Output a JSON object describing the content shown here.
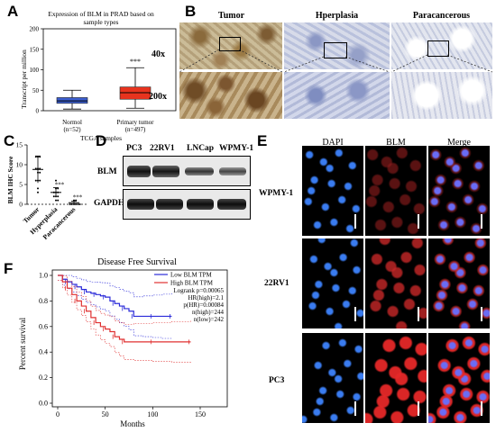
{
  "panels": {
    "A": {
      "letter": "A",
      "title_line1": "Expression of BLM in PRAD based on",
      "title_line2": "sample types",
      "ylabel": "Transcript per million",
      "yticks": [
        "0",
        "50",
        "100",
        "150",
        "200"
      ],
      "xlabel": "TCGA samples",
      "groups": [
        {
          "name": "Normol",
          "n": "(n=52)"
        },
        {
          "name": "Primary tumor",
          "n": "(n=497)"
        }
      ],
      "sig": "***"
    },
    "B": {
      "letter": "B",
      "columns": [
        "Tumor",
        "Hperplasia",
        "Paracancerous"
      ],
      "rows": [
        "40x",
        "200x"
      ]
    },
    "C": {
      "letter": "C",
      "ylabel": "BLM IHC Score",
      "yticks": [
        "0",
        "5",
        "10",
        "15"
      ],
      "categories": [
        "Tumor",
        "Hyperplasia",
        "Paracancerous"
      ],
      "sig": [
        "***",
        "***"
      ]
    },
    "D": {
      "letter": "D",
      "lanes": [
        "PC3",
        "22RV1",
        "LNCap",
        "WPMY-1"
      ],
      "rows": [
        "BLM",
        "GAPDH"
      ]
    },
    "E": {
      "letter": "E",
      "columns": [
        "DAPI",
        "BLM",
        "Merge"
      ],
      "rows": [
        "WPMY-1",
        "22RV1",
        "PC3"
      ]
    },
    "F": {
      "letter": "F",
      "title": "Disease Free Survival",
      "ylabel": "Percent survival",
      "xlabel": "Months",
      "xticks": [
        "0",
        "50",
        "100",
        "150"
      ],
      "yticks": [
        "0.0",
        "0.2",
        "0.4",
        "0.6",
        "0.8",
        "1.0"
      ],
      "legend": [
        {
          "label": "Low BLM TPM",
          "color": "#2b2bd9"
        },
        {
          "label": "High BLM TPM",
          "color": "#e03030"
        }
      ],
      "stats": [
        "Logrank p=0.00065",
        "HR(high)=2.1",
        "p(HR)=0.00084",
        "n(high)=244",
        "n(low)=242"
      ]
    }
  },
  "chart_data": [
    {
      "type": "box",
      "title": "Expression of BLM in PRAD based on sample types",
      "xlabel": "TCGA samples",
      "ylabel": "Transcript per million",
      "ylim": [
        0,
        200
      ],
      "categories": [
        "Normol (n=52)",
        "Primary tumor (n=497)"
      ],
      "boxes": [
        {
          "min": 4,
          "q1": 18,
          "median": 24,
          "q3": 32,
          "max": 50,
          "color": "#3d5fd0"
        },
        {
          "min": 6,
          "q1": 28,
          "median": 44,
          "q3": 58,
          "max": 105,
          "color": "#e8331e"
        }
      ]
    },
    {
      "type": "scatter",
      "ylabel": "BLM IHC Score",
      "ylim": [
        0,
        15
      ],
      "categories": [
        "Tumor",
        "Hyperplasia",
        "Paracancerous"
      ],
      "means": [
        8.8,
        3.0,
        0.4
      ],
      "error": [
        3.4,
        1.2,
        0.4
      ],
      "points": [
        [
          12,
          12,
          12,
          9,
          9,
          9,
          8,
          8,
          6,
          6,
          6,
          4,
          3
        ],
        [
          6,
          4,
          4,
          3,
          3,
          3,
          2,
          2,
          2,
          1,
          1
        ],
        [
          1,
          1,
          0,
          0,
          0,
          0,
          0,
          0
        ]
      ]
    },
    {
      "type": "line",
      "title": "Disease Free Survival",
      "xlabel": "Months",
      "ylabel": "Percent survival",
      "xlim": [
        0,
        150
      ],
      "ylim": [
        0,
        1
      ],
      "series": [
        {
          "name": "Low BLM TPM",
          "color": "#2b2bd9",
          "x": [
            0,
            5,
            10,
            15,
            20,
            25,
            30,
            35,
            40,
            45,
            50,
            55,
            60,
            65,
            70,
            75,
            80,
            90,
            100,
            110,
            120
          ],
          "y": [
            1.0,
            0.97,
            0.95,
            0.93,
            0.91,
            0.89,
            0.87,
            0.86,
            0.85,
            0.84,
            0.83,
            0.8,
            0.78,
            0.76,
            0.74,
            0.72,
            0.68,
            0.68,
            0.68,
            0.68,
            0.68
          ]
        },
        {
          "name": "High BLM TPM",
          "color": "#e03030",
          "x": [
            0,
            5,
            10,
            15,
            20,
            25,
            30,
            35,
            40,
            45,
            50,
            55,
            60,
            65,
            70,
            80,
            100,
            120,
            140
          ],
          "y": [
            1.0,
            0.95,
            0.9,
            0.85,
            0.8,
            0.76,
            0.72,
            0.67,
            0.63,
            0.6,
            0.58,
            0.56,
            0.52,
            0.5,
            0.48,
            0.48,
            0.48,
            0.48,
            0.48
          ]
        }
      ]
    }
  ]
}
